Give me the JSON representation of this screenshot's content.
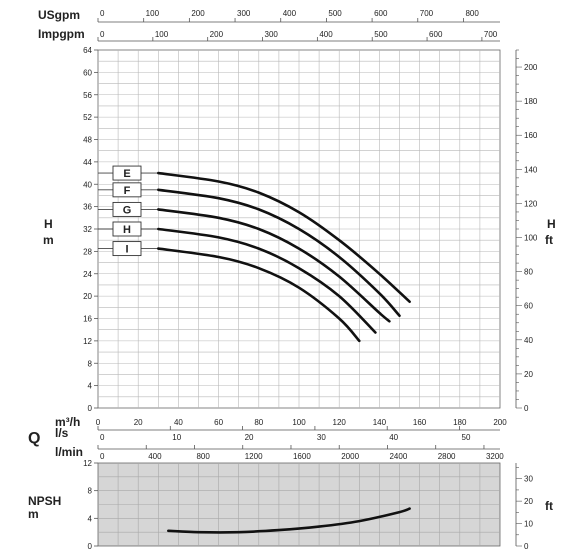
{
  "chart_data": [
    {
      "type": "line",
      "title": "",
      "scales": {
        "usgpm": {
          "label": "USgpm",
          "range": [
            0,
            880
          ],
          "ticks": [
            0,
            100,
            200,
            300,
            400,
            500,
            600,
            700,
            800
          ]
        },
        "impgpm": {
          "label": "Impgpm",
          "range": [
            0,
            733
          ],
          "ticks": [
            0,
            100,
            200,
            300,
            400,
            500,
            600,
            700
          ]
        },
        "m3h": {
          "label": "m³/h",
          "range": [
            0,
            200
          ],
          "ticks": [
            0,
            20,
            40,
            60,
            80,
            100,
            120,
            140,
            160,
            180,
            200
          ]
        },
        "ls": {
          "label": "l/s",
          "range": [
            0,
            55.6
          ],
          "ticks": [
            0,
            10,
            20,
            30,
            40,
            50
          ]
        },
        "lmin": {
          "label": "l/min",
          "range": [
            0,
            3333
          ],
          "ticks": [
            0,
            400,
            800,
            1200,
            1600,
            2000,
            2400,
            2800,
            3200
          ]
        }
      },
      "ylabel_left": "H",
      "yunit_left": "m",
      "ylabel_right": "H",
      "yunit_right": "ft",
      "ylim": [
        0,
        64
      ],
      "yticks": [
        0,
        4,
        8,
        12,
        16,
        20,
        24,
        28,
        32,
        36,
        40,
        44,
        48,
        52,
        56,
        60,
        64
      ],
      "ylim_ft": [
        0,
        210
      ],
      "yticks_ft": [
        0,
        20,
        40,
        60,
        80,
        100,
        120,
        140,
        160,
        180,
        200
      ],
      "grid": true,
      "xlabel": "m³/h",
      "series": [
        {
          "name": "E",
          "x": [
            0,
            30,
            60,
            80,
            100,
            120,
            140,
            155
          ],
          "y": [
            42,
            42,
            40.5,
            38.5,
            35,
            30,
            24,
            19
          ]
        },
        {
          "name": "F",
          "x": [
            0,
            30,
            60,
            80,
            100,
            120,
            140,
            150
          ],
          "y": [
            39,
            39,
            37.5,
            35.5,
            32,
            27,
            20.5,
            16.5
          ]
        },
        {
          "name": "G",
          "x": [
            0,
            30,
            60,
            80,
            100,
            120,
            140,
            145
          ],
          "y": [
            35.5,
            35.5,
            34,
            32,
            28.5,
            23.5,
            17,
            15.5
          ]
        },
        {
          "name": "H",
          "x": [
            0,
            30,
            60,
            80,
            100,
            120,
            138
          ],
          "y": [
            32,
            32,
            30.5,
            28.5,
            25,
            20,
            13.5
          ]
        },
        {
          "name": "I",
          "x": [
            0,
            30,
            60,
            80,
            100,
            120,
            130
          ],
          "y": [
            28.5,
            28.5,
            27,
            25,
            21.5,
            16,
            12
          ]
        }
      ]
    },
    {
      "type": "line",
      "title": "",
      "ylabel_left": "NPSH",
      "yunit_left": "m",
      "yunit_right": "ft",
      "xlabel": "m³/h",
      "ylim": [
        0,
        12
      ],
      "yticks": [
        0,
        4,
        8,
        12
      ],
      "ylim_ft": [
        0,
        37
      ],
      "yticks_ft": [
        0,
        10,
        20,
        30
      ],
      "grid": true,
      "series": [
        {
          "name": "",
          "x": [
            35,
            50,
            70,
            90,
            110,
            130,
            150,
            155
          ],
          "y": [
            2.2,
            2.0,
            2.0,
            2.3,
            2.8,
            3.6,
            4.9,
            5.4
          ]
        }
      ]
    }
  ],
  "section_label": "Q"
}
